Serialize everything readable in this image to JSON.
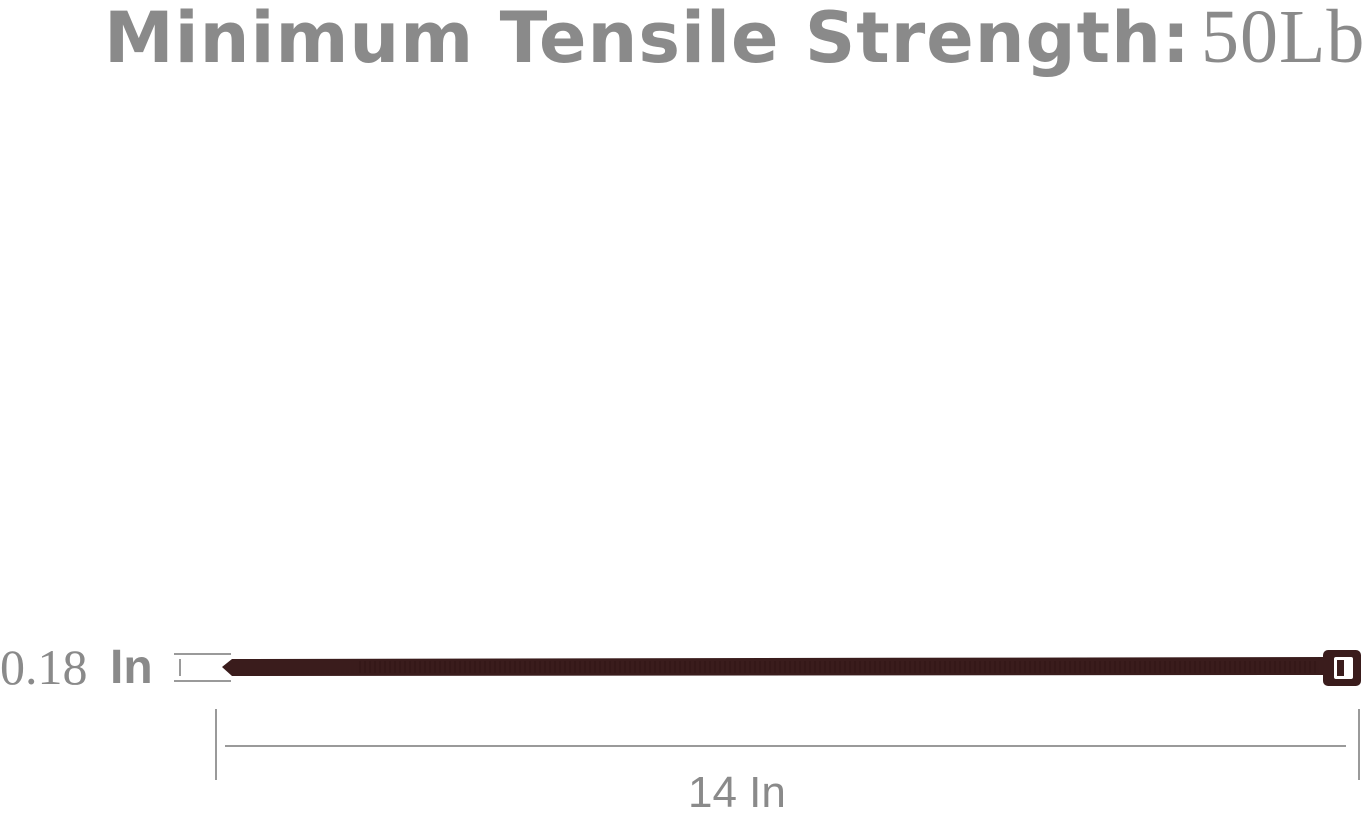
{
  "title": {
    "label": "Minimum Tensile Strength:",
    "value": "50Lbs"
  },
  "dimensions": {
    "width_value": "0.18",
    "width_unit": "In",
    "length_label": "14 In"
  },
  "colors": {
    "text": "#8a8a8a",
    "tie": "#3a1c1c",
    "lines": "#9a9a9a"
  }
}
